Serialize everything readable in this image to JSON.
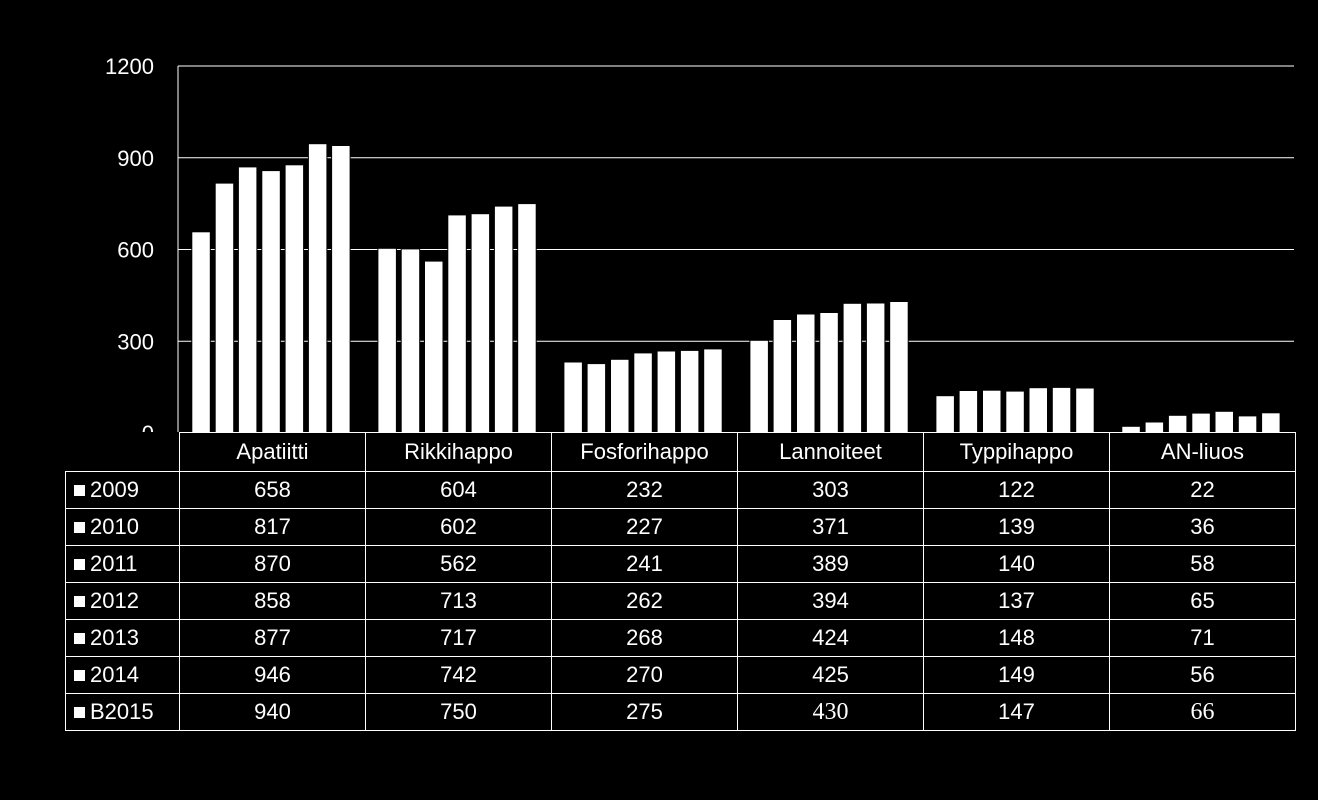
{
  "chart_data": {
    "type": "bar",
    "title": "",
    "xlabel": "",
    "ylabel": "",
    "ylim": [
      0,
      1200
    ],
    "yticks": [
      0,
      300,
      600,
      900,
      1200
    ],
    "grid": true,
    "legend": "data-table-rows",
    "bar_color": "#ffffff",
    "background": "#000000",
    "categories": [
      "Apatiitti",
      "Rikkihappo",
      "Fosforihappo",
      "Lannoiteet",
      "Typpihappo",
      "AN-liuos"
    ],
    "series": [
      {
        "name": "2009",
        "values": [
          658,
          604,
          232,
          303,
          122,
          22
        ]
      },
      {
        "name": "2010",
        "values": [
          817,
          602,
          227,
          371,
          139,
          36
        ]
      },
      {
        "name": "2011",
        "values": [
          870,
          562,
          241,
          389,
          140,
          58
        ]
      },
      {
        "name": "2012",
        "values": [
          858,
          713,
          262,
          394,
          137,
          65
        ]
      },
      {
        "name": "2013",
        "values": [
          877,
          717,
          268,
          424,
          148,
          71
        ]
      },
      {
        "name": "2014",
        "values": [
          946,
          742,
          270,
          425,
          149,
          56
        ]
      },
      {
        "name": "B2015",
        "values": [
          940,
          750,
          275,
          430,
          147,
          66
        ]
      }
    ]
  }
}
